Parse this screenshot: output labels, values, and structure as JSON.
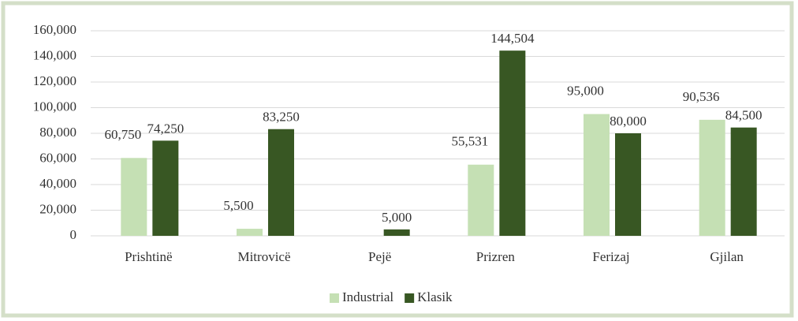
{
  "chart_data": {
    "type": "bar",
    "categories": [
      "Prishtinë",
      "Mitrovicë",
      "Pejë",
      "Prizren",
      "Ferizaj",
      "Gjilan"
    ],
    "series": [
      {
        "name": "Industrial",
        "color": "#c5e0b4",
        "values": [
          60750,
          5500,
          null,
          55531,
          95000,
          90536
        ],
        "value_labels": [
          "60,750",
          "5,500",
          null,
          "55,531",
          "95,000",
          "90,536"
        ]
      },
      {
        "name": "Klasik",
        "color": "#385723",
        "values": [
          74250,
          83250,
          5000,
          144504,
          80000,
          84500
        ],
        "value_labels": [
          "74,250",
          "83,250",
          "5,000",
          "144,504",
          "80,000",
          "84,500"
        ]
      }
    ],
    "ylim": [
      0,
      160000
    ],
    "yticks": [
      0,
      {
        "value": 20000,
        "label": "20,000"
      },
      {
        "value": 40000,
        "label": "40,000"
      },
      {
        "value": 60000,
        "label": "60,000"
      },
      {
        "value": 80000,
        "label": "80,000"
      },
      {
        "value": 100000,
        "label": "100,000"
      },
      {
        "value": 120000,
        "label": "120,000"
      },
      {
        "value": 140000,
        "label": "140,000"
      },
      {
        "value": 160000,
        "label": "160,000"
      }
    ],
    "grid": true,
    "legend": "bottom"
  }
}
